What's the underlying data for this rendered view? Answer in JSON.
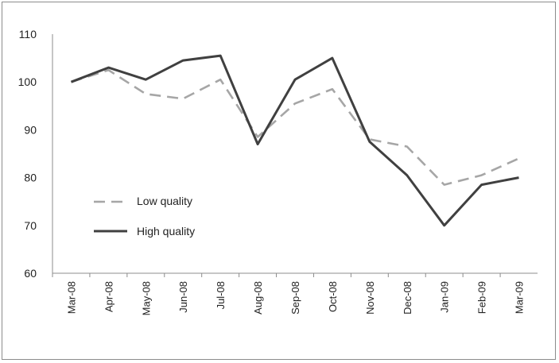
{
  "chart_data": {
    "type": "line",
    "title": "",
    "xlabel": "",
    "ylabel": "",
    "categories": [
      "Mar-08",
      "Apr-08",
      "May-08",
      "Jun-08",
      "Jul-08",
      "Aug-08",
      "Sep-08",
      "Oct-08",
      "Nov-08",
      "Dec-08",
      "Jan-09",
      "Feb-09",
      "Mar-09"
    ],
    "ylim": [
      60,
      110
    ],
    "yticks": [
      60,
      70,
      80,
      90,
      100,
      110
    ],
    "grid": false,
    "legend_position": "left-lower",
    "series": [
      {
        "name": "Low quality",
        "style": "dashed",
        "color": "#a6a6a6",
        "values": [
          100,
          102.5,
          97.5,
          96.5,
          100.5,
          88.5,
          95.5,
          98.5,
          88,
          86.5,
          78.5,
          80.5,
          84
        ]
      },
      {
        "name": "High quality",
        "style": "solid",
        "color": "#404040",
        "values": [
          100,
          103,
          100.5,
          104.5,
          105.5,
          87,
          100.5,
          105,
          87.5,
          80.5,
          70,
          78.5,
          80
        ]
      }
    ]
  }
}
